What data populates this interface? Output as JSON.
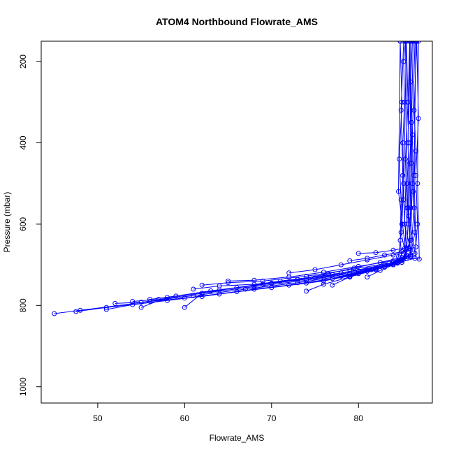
{
  "chart_data": {
    "type": "line",
    "title": "ATOM4 Northbound Flowrate_AMS",
    "xlabel": "Flowrate_AMS",
    "ylabel": "Pressure (mbar)",
    "xlim": [
      43.5,
      88.5
    ],
    "ylim": [
      1040,
      150
    ],
    "y_reversed": true,
    "xticks": [
      50,
      60,
      70,
      80
    ],
    "yticks": [
      200,
      400,
      600,
      800,
      1000
    ],
    "grid": false,
    "marker": "open-circle",
    "series_color": "#0000ff",
    "series": [
      {
        "x": [
          45.0,
          48.0,
          56.0,
          62.0,
          68.0,
          74.0,
          79.0,
          82.0,
          84.0,
          84.6,
          85.0,
          85.2,
          85.1,
          85.3,
          85.2,
          85.4
        ],
        "y": [
          820,
          812,
          790,
          778,
          760,
          745,
          728,
          712,
          700,
          680,
          600,
          500,
          400,
          300,
          200,
          150
        ]
      },
      {
        "x": [
          47.5,
          51.0,
          58.0,
          64.0,
          70.0,
          76.0,
          80.0,
          83.0,
          85.0,
          85.8,
          86.0,
          85.9,
          86.1,
          86.0,
          86.2
        ],
        "y": [
          815,
          805,
          788,
          772,
          756,
          740,
          722,
          706,
          690,
          660,
          560,
          450,
          350,
          250,
          150
        ]
      },
      {
        "x": [
          51.0,
          54.0,
          60.0,
          66.0,
          72.0,
          77.0,
          81.0,
          84.0,
          85.5,
          85.7,
          85.6,
          85.8,
          85.7,
          85.9
        ],
        "y": [
          810,
          798,
          782,
          766,
          750,
          734,
          716,
          700,
          680,
          600,
          500,
          400,
          300,
          150
        ]
      },
      {
        "x": [
          52.0,
          55.0,
          61.0,
          67.0,
          73.0,
          78.0,
          82.0,
          84.5,
          86.0,
          86.5,
          86.3,
          86.6,
          86.4,
          86.7
        ],
        "y": [
          795,
          792,
          776,
          760,
          744,
          728,
          710,
          695,
          675,
          620,
          520,
          420,
          320,
          150
        ]
      },
      {
        "x": [
          54.0,
          57.0,
          62.0,
          68.0,
          74.0,
          79.0,
          83.0,
          85.0,
          84.8,
          84.9,
          84.7,
          85.0,
          84.8
        ],
        "y": [
          790,
          785,
          770,
          754,
          738,
          722,
          705,
          688,
          640,
          540,
          440,
          300,
          150
        ]
      },
      {
        "x": [
          55.0,
          58.0,
          63.0,
          69.0,
          75.0,
          80.0,
          84.0,
          86.5,
          86.8,
          86.6,
          86.9,
          86.7
        ],
        "y": [
          805,
          780,
          764,
          748,
          732,
          716,
          698,
          684,
          600,
          480,
          340,
          150
        ]
      },
      {
        "x": [
          56.0,
          59.0,
          64.0,
          70.0,
          76.0,
          81.0,
          84.5,
          85.3,
          85.6,
          85.4,
          85.7,
          85.5
        ],
        "y": [
          785,
          777,
          762,
          746,
          730,
          712,
          694,
          660,
          560,
          440,
          300,
          150
        ]
      },
      {
        "x": [
          60.0,
          62.0,
          66.0,
          71.0,
          77.0,
          82.0,
          85.0,
          86.0,
          86.2,
          86.1,
          86.3
        ],
        "y": [
          805,
          770,
          756,
          740,
          724,
          706,
          688,
          640,
          500,
          350,
          150
        ]
      },
      {
        "x": [
          61.0,
          64.0,
          68.0,
          73.0,
          78.0,
          83.0,
          85.5,
          84.9,
          85.1,
          84.9,
          85.2
        ],
        "y": [
          760,
          752,
          748,
          736,
          720,
          700,
          684,
          620,
          480,
          320,
          150
        ]
      },
      {
        "x": [
          62.0,
          65.0,
          69.0,
          74.0,
          79.0,
          83.5,
          86.0,
          86.4,
          86.2,
          86.5
        ],
        "y": [
          750,
          744,
          740,
          728,
          712,
          696,
          678,
          560,
          380,
          150
        ]
      },
      {
        "x": [
          65.0,
          68.0,
          72.0,
          76.0,
          80.0,
          84.0,
          86.5,
          85.8,
          86.0,
          85.9
        ],
        "y": [
          740,
          738,
          730,
          718,
          704,
          690,
          672,
          580,
          400,
          150
        ]
      },
      {
        "x": [
          70.0,
          73.0,
          76.5,
          79.5,
          82.5,
          85.0,
          87.0,
          86.8,
          86.9
        ],
        "y": [
          745,
          736,
          722,
          708,
          694,
          682,
          686,
          500,
          150
        ]
      },
      {
        "x": [
          72.0,
          75.0,
          78.0,
          81.0,
          84.0,
          86.0,
          85.3,
          85.6,
          85.4
        ],
        "y": [
          720,
          712,
          700,
          688,
          676,
          664,
          600,
          400,
          150
        ]
      },
      {
        "x": [
          74.0,
          76.0,
          79.0,
          82.0,
          85.0,
          86.0,
          86.1,
          86.0
        ],
        "y": [
          765,
          748,
          730,
          712,
          694,
          640,
          450,
          150
        ]
      },
      {
        "x": [
          77.0,
          79.0,
          81.5,
          84.0,
          85.5,
          84.6,
          84.8
        ],
        "y": [
          750,
          730,
          712,
          694,
          676,
          520,
          150
        ]
      },
      {
        "x": [
          79.0,
          81.0,
          83.0,
          85.0,
          86.6,
          86.4,
          86.6
        ],
        "y": [
          690,
          684,
          676,
          668,
          656,
          480,
          150
        ]
      },
      {
        "x": [
          80.0,
          82.0,
          84.0,
          85.5,
          85.2,
          85.5
        ],
        "y": [
          672,
          670,
          664,
          658,
          540,
          150
        ]
      },
      {
        "x": [
          81.0,
          82.5,
          84.5,
          86.0,
          85.7,
          85.9
        ],
        "y": [
          730,
          714,
          696,
          680,
          560,
          150
        ]
      }
    ]
  }
}
